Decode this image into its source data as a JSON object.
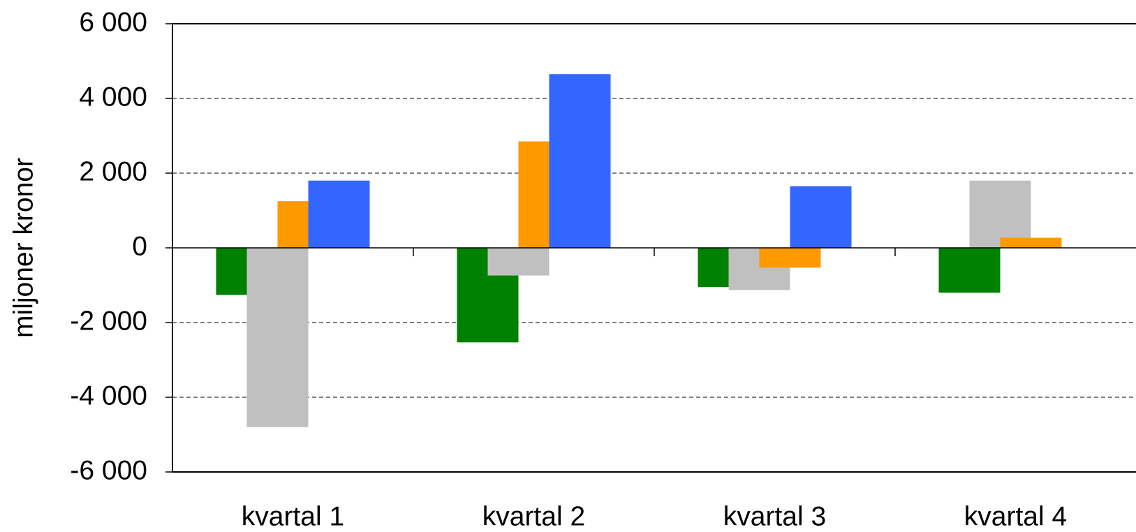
{
  "chart_data": {
    "type": "bar",
    "y_label": "miljoner kronor",
    "categories": [
      "kvartal 1",
      "kvartal 2",
      "kvartal 3",
      "kvartal 4"
    ],
    "series": [
      {
        "color": "#008000",
        "values": [
          -1260,
          -2530,
          -1050,
          -1200
        ]
      },
      {
        "color": "#c0c0c0",
        "values": [
          -4800,
          -740,
          -1130,
          1800
        ]
      },
      {
        "color": "#ff9900",
        "values": [
          1250,
          2850,
          -530,
          270
        ]
      },
      {
        "color": "#3366ff",
        "values": [
          1800,
          4650,
          1650,
          null
        ]
      }
    ],
    "ylim": [
      -6000,
      6000
    ],
    "yticks": [
      {
        "value": -6000,
        "label": "-6 000"
      },
      {
        "value": -4000,
        "label": "-4 000"
      },
      {
        "value": -2000,
        "label": "-2 000"
      },
      0,
      {
        "value": 2000,
        "label": "2 000"
      },
      {
        "value": 4000,
        "label": "4 000"
      },
      {
        "value": 6000,
        "label": "6 000"
      }
    ],
    "grid": true
  }
}
